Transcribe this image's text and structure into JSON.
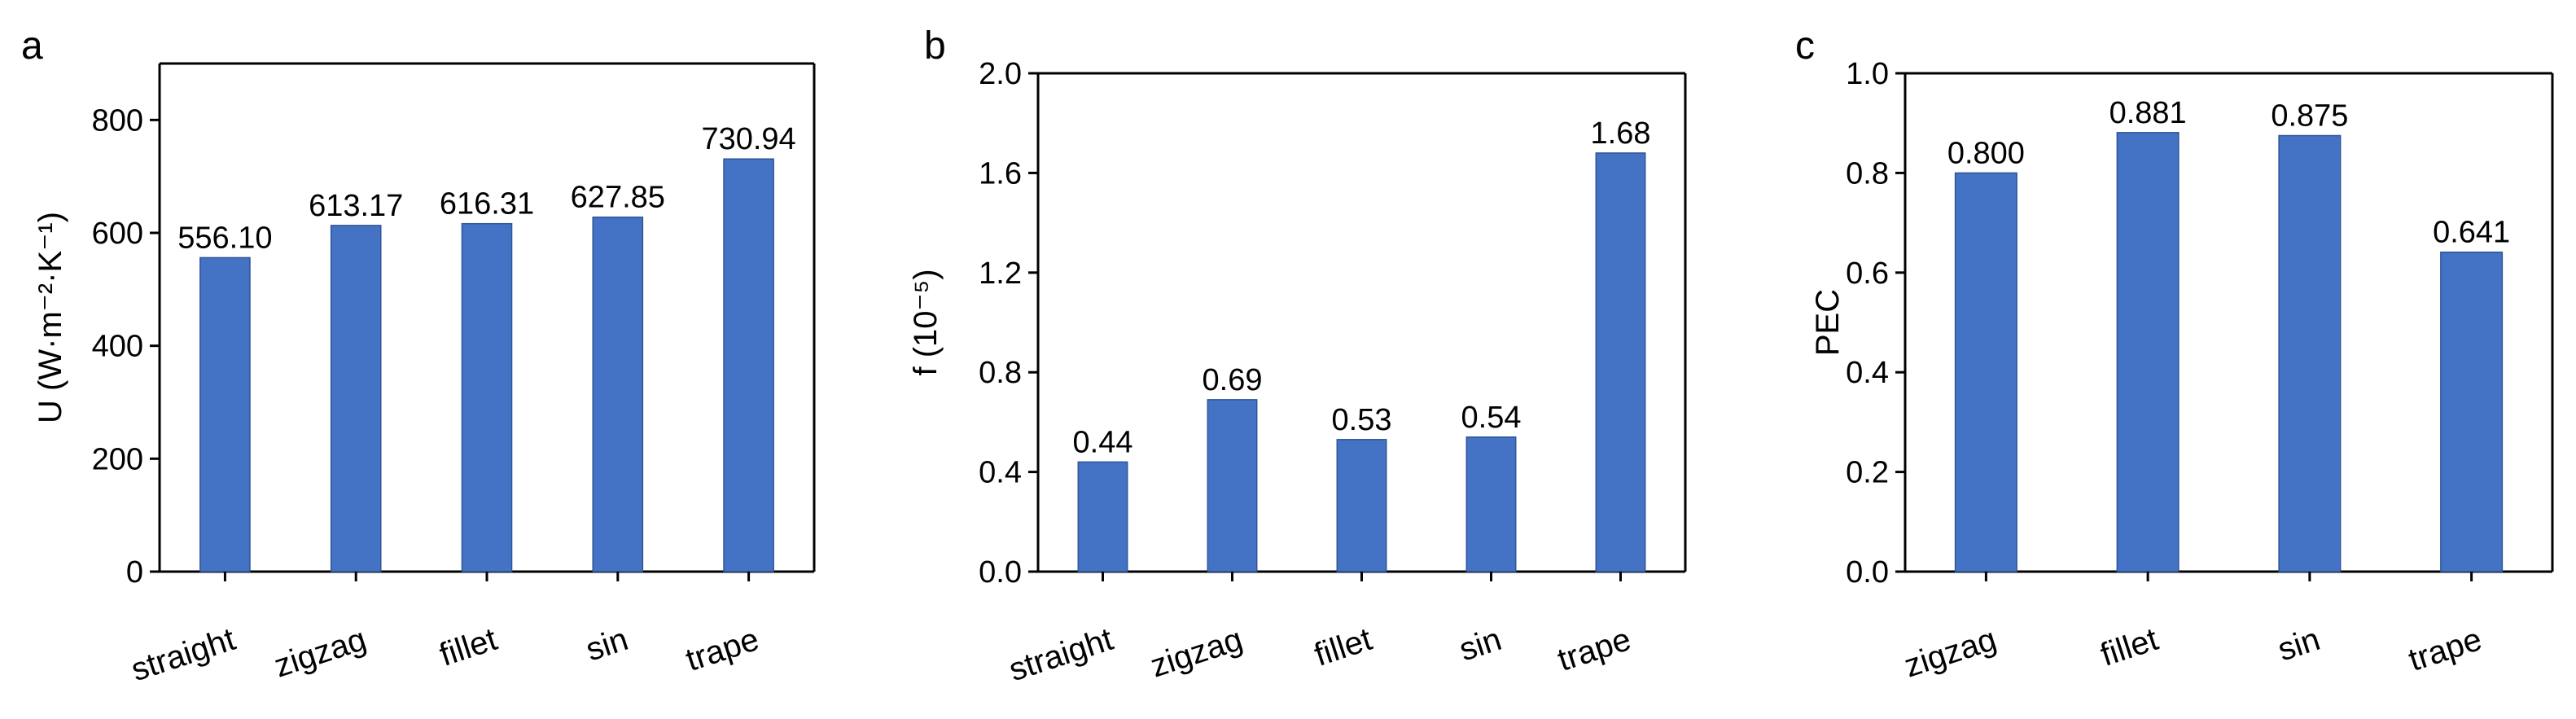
{
  "colors": {
    "bar": "#4472c4",
    "axis": "#000000",
    "background": "#ffffff"
  },
  "chart_data": [
    {
      "panel": "a",
      "type": "bar",
      "categories": [
        "straight",
        "zigzag",
        "fillet",
        "sin",
        "trape"
      ],
      "values": [
        556.1,
        613.17,
        616.31,
        627.85,
        730.94
      ],
      "value_labels": [
        "556.10",
        "613.17",
        "616.31",
        "627.85",
        "730.94"
      ],
      "ylabel": "U (W·m⁻²·K⁻¹)",
      "ylim": [
        0,
        900
      ],
      "yticks": [
        0,
        200,
        400,
        600,
        800
      ],
      "ytick_labels": [
        "0",
        "200",
        "400",
        "600",
        "800"
      ],
      "grid": false,
      "legend": "none"
    },
    {
      "panel": "b",
      "type": "bar",
      "categories": [
        "straight",
        "zigzag",
        "fillet",
        "sin",
        "trape"
      ],
      "values": [
        0.44,
        0.69,
        0.53,
        0.54,
        1.68
      ],
      "value_labels": [
        "0.44",
        "0.69",
        "0.53",
        "0.54",
        "1.68"
      ],
      "ylabel": "f (10⁻⁵)",
      "ylim": [
        0.0,
        2.0
      ],
      "yticks": [
        0.0,
        0.4,
        0.8,
        1.2,
        1.6,
        2.0
      ],
      "ytick_labels": [
        "0.0",
        "0.4",
        "0.8",
        "1.2",
        "1.6",
        "2.0"
      ],
      "grid": false,
      "legend": "none"
    },
    {
      "panel": "c",
      "type": "bar",
      "categories": [
        "zigzag",
        "fillet",
        "sin",
        "trape"
      ],
      "values": [
        0.8,
        0.881,
        0.875,
        0.641
      ],
      "value_labels": [
        "0.800",
        "0.881",
        "0.875",
        "0.641"
      ],
      "ylabel": "PEC",
      "ylim": [
        0.0,
        1.0
      ],
      "yticks": [
        0.0,
        0.2,
        0.4,
        0.6,
        0.8,
        1.0
      ],
      "ytick_labels": [
        "0.0",
        "0.2",
        "0.4",
        "0.6",
        "0.8",
        "1.0"
      ],
      "grid": false,
      "legend": "none"
    }
  ]
}
